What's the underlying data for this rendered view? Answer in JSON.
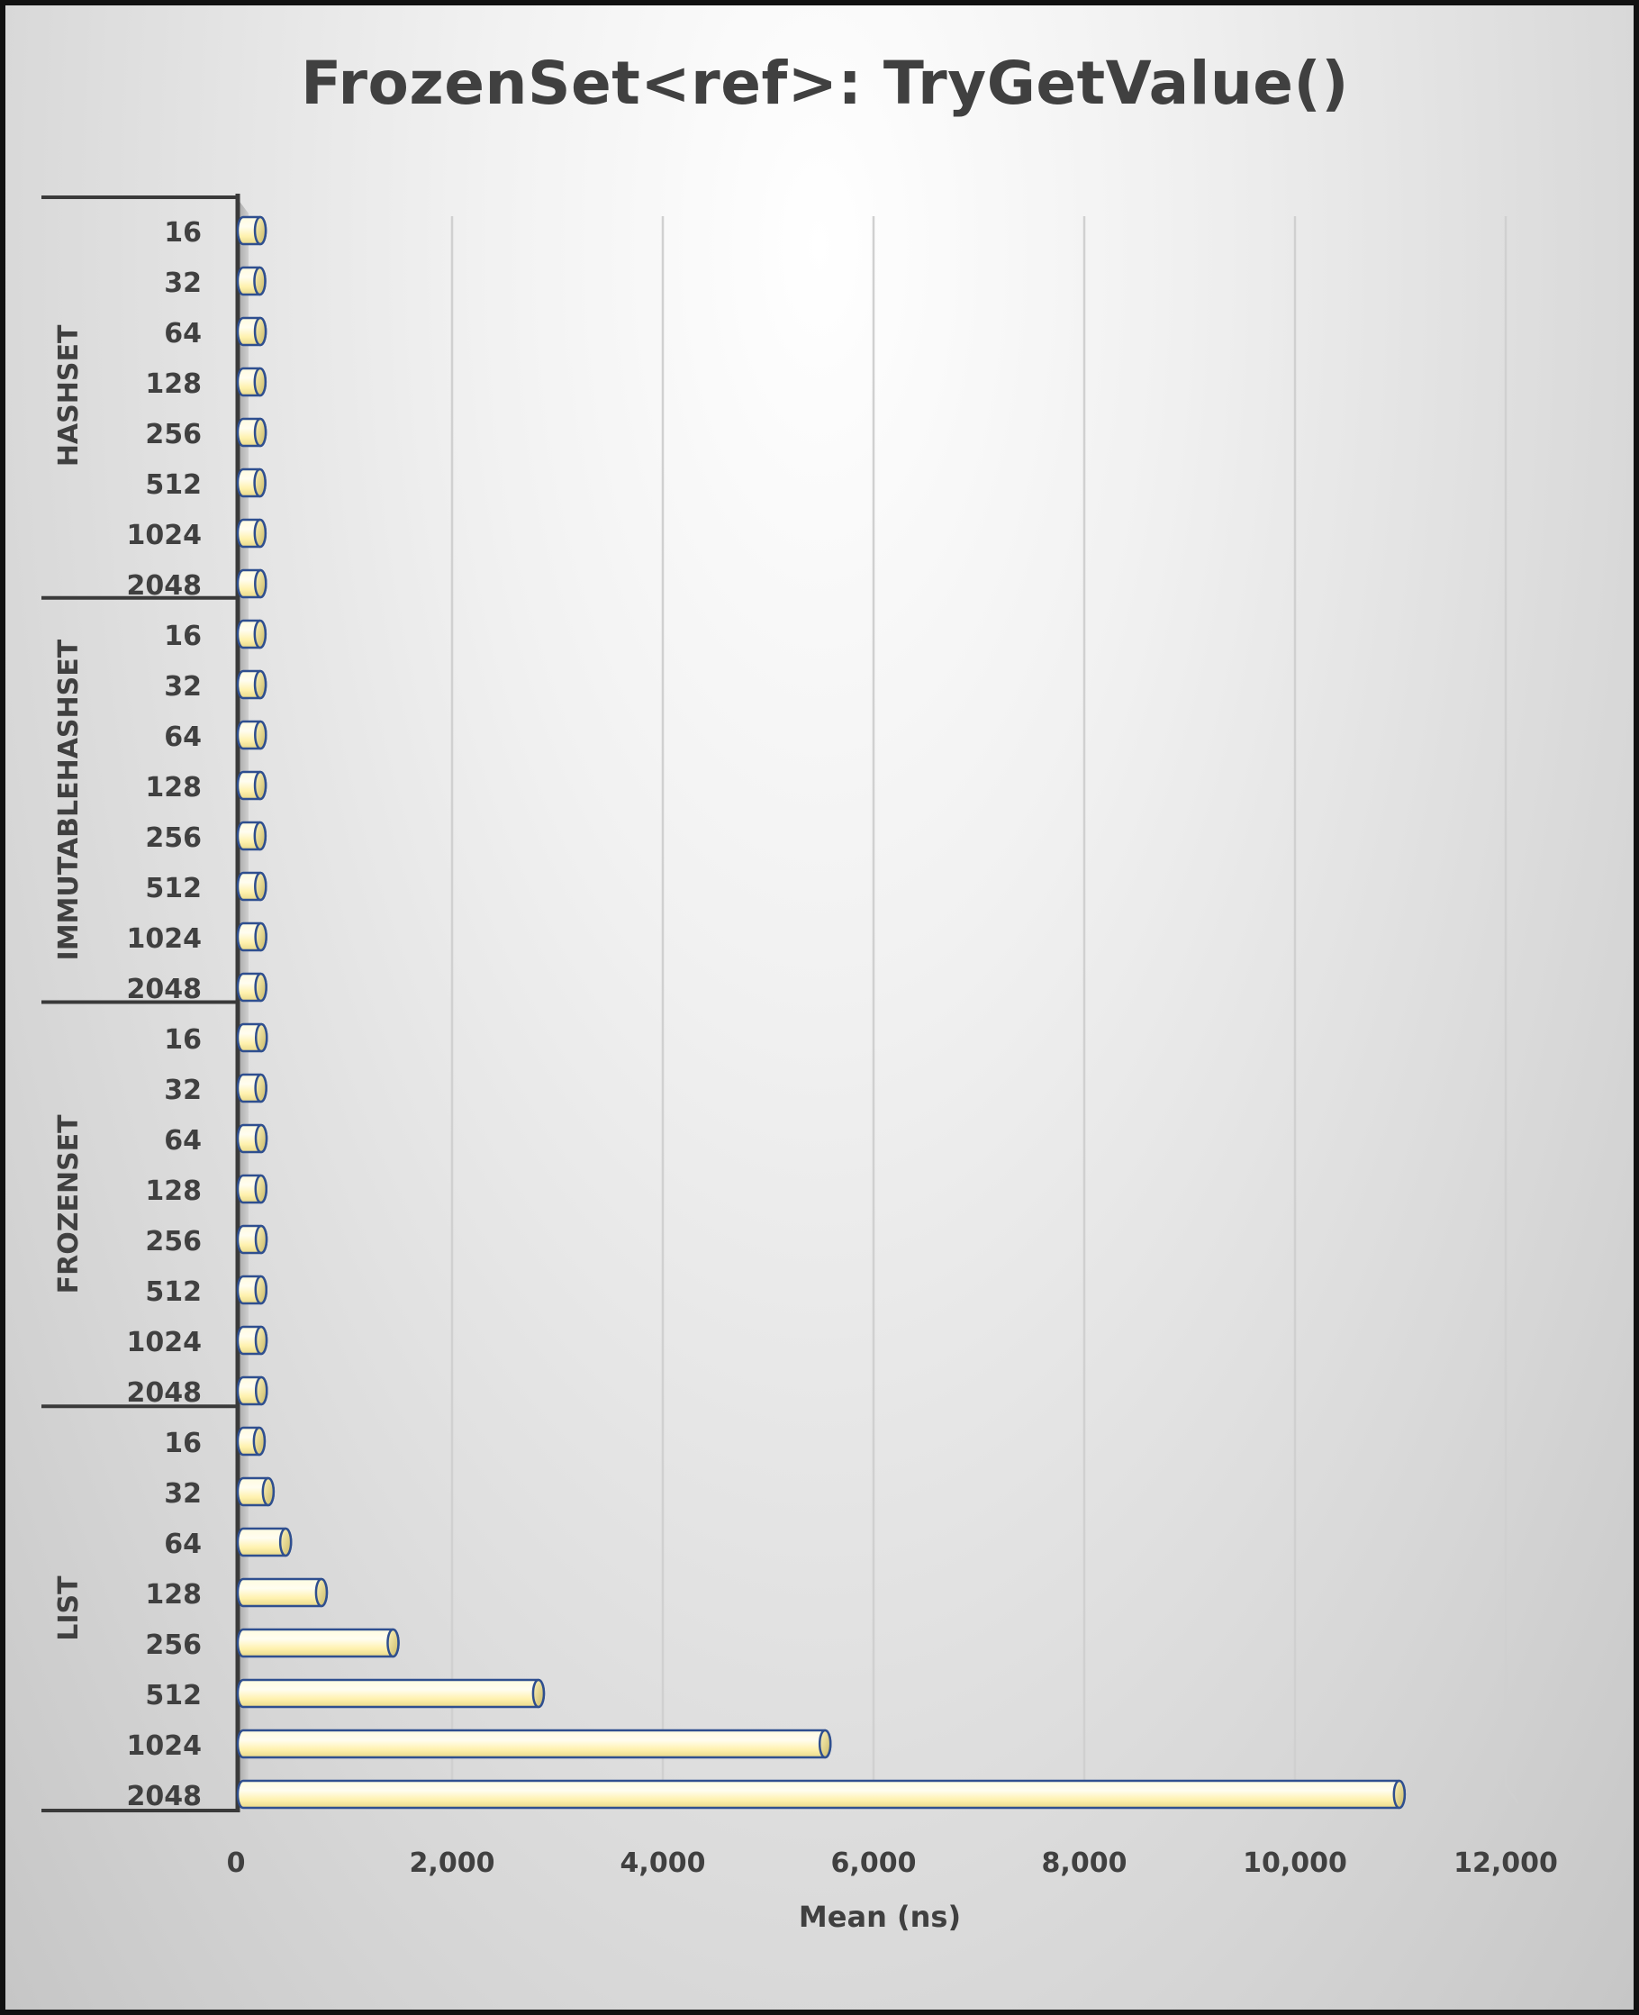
{
  "chart_data": {
    "type": "bar",
    "orientation": "horizontal",
    "title": "FrozenSet<ref>: TryGetValue()",
    "xlabel": "Mean (ns)",
    "ylabel": "",
    "xlim": [
      0,
      12000
    ],
    "x_ticks": [
      "0",
      "2,000",
      "4,000",
      "6,000",
      "8,000",
      "10,000",
      "12,000"
    ],
    "grid": true,
    "legend": "none",
    "bar_color": "#fff8c8",
    "bar_outline": "#2f4f8f",
    "groups": [
      {
        "name": "HASHSET",
        "categories": [
          "16",
          "32",
          "64",
          "128",
          "256",
          "512",
          "1024",
          "2048"
        ],
        "values": [
          180,
          175,
          180,
          178,
          180,
          176,
          178,
          182
        ]
      },
      {
        "name": "IMMUTABLEHASHSET",
        "categories": [
          "16",
          "32",
          "64",
          "128",
          "256",
          "512",
          "1024",
          "2048"
        ],
        "values": [
          178,
          180,
          182,
          180,
          178,
          182,
          185,
          185
        ]
      },
      {
        "name": "FROZENSET",
        "categories": [
          "16",
          "32",
          "64",
          "128",
          "256",
          "512",
          "1024",
          "2048"
        ],
        "values": [
          190,
          185,
          188,
          186,
          188,
          186,
          188,
          190
        ]
      },
      {
        "name": "LIST",
        "categories": [
          "16",
          "32",
          "64",
          "128",
          "256",
          "512",
          "1024",
          "2048"
        ],
        "values": [
          170,
          255,
          420,
          760,
          1440,
          2820,
          5540,
          10990
        ]
      }
    ]
  }
}
